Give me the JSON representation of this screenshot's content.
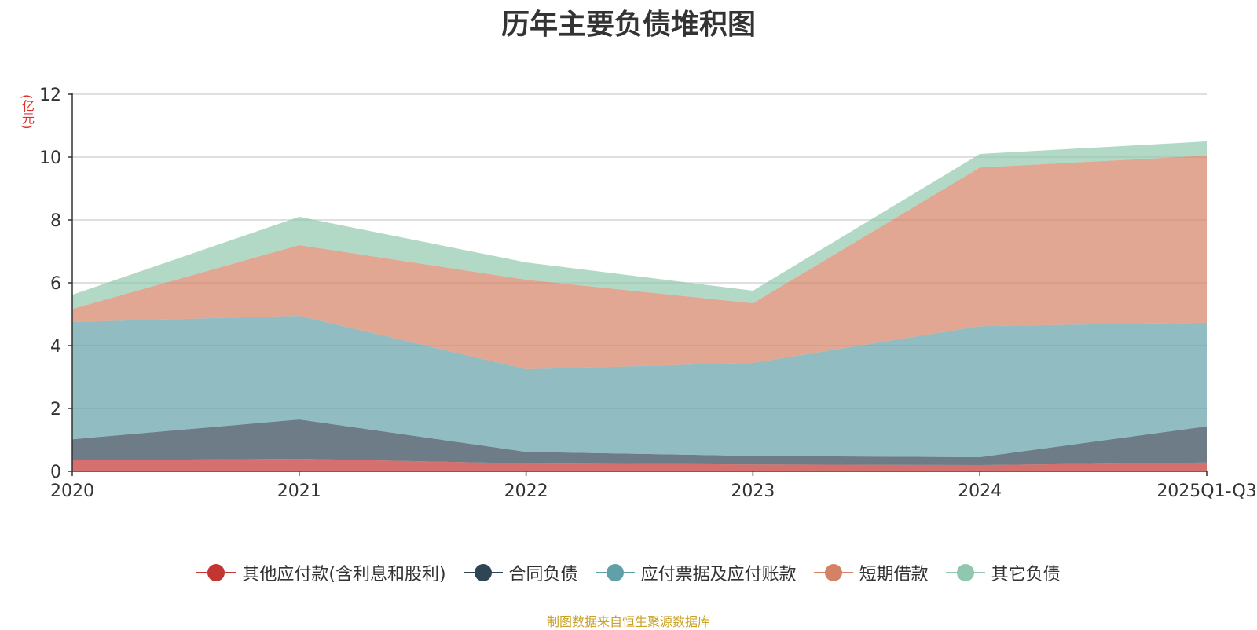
{
  "chart_data": {
    "type": "area",
    "stacked": true,
    "title": "历年主要负债堆积图",
    "ylabel": "(亿元)",
    "xlabel": "",
    "categories": [
      "2020",
      "2021",
      "2022",
      "2023",
      "2024",
      "2025Q1-Q3"
    ],
    "ylim": [
      0,
      12
    ],
    "yticks": [
      0,
      2,
      4,
      6,
      8,
      10,
      12
    ],
    "grid": true,
    "legend_position": "bottom",
    "series": [
      {
        "name": "其他应付款(含利息和股利)",
        "color": "#c23531",
        "values": [
          0.35,
          0.4,
          0.25,
          0.22,
          0.2,
          0.28
        ]
      },
      {
        "name": "合同负债",
        "color": "#2f4554",
        "values": [
          0.67,
          1.25,
          0.37,
          0.27,
          0.25,
          1.15
        ]
      },
      {
        "name": "应付票据及应付账款",
        "color": "#61a0a8",
        "values": [
          3.73,
          3.3,
          2.63,
          2.96,
          4.17,
          3.3
        ]
      },
      {
        "name": "短期借款",
        "color": "#d48265",
        "values": [
          0.42,
          2.25,
          2.85,
          1.9,
          5.05,
          5.32
        ]
      },
      {
        "name": "其它负债",
        "color": "#91c7ae",
        "values": [
          0.45,
          0.9,
          0.55,
          0.4,
          0.43,
          0.45
        ]
      }
    ]
  },
  "source_note": "制图数据来自恒生聚源数据库"
}
